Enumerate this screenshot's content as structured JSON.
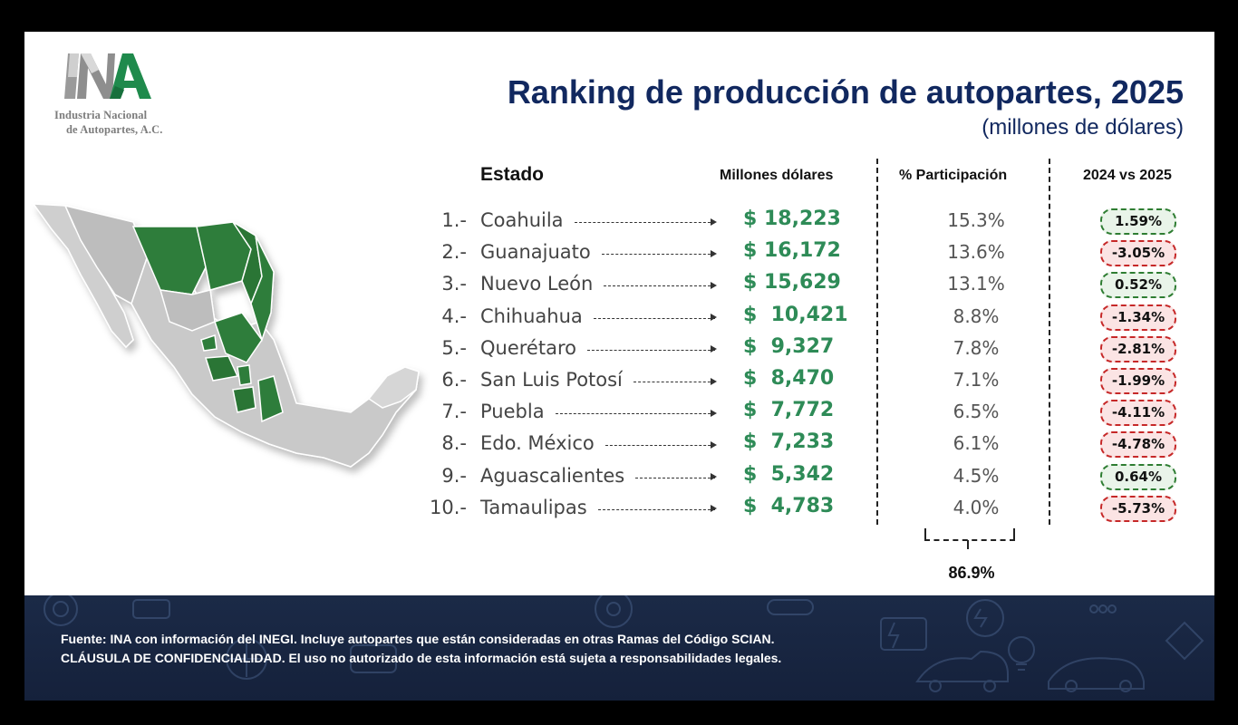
{
  "header": {
    "title": "Ranking de producción de autopartes, 2025",
    "subtitle": "(millones de dólares)"
  },
  "logo": {
    "mark": "INA",
    "line1": "Industria Nacional",
    "line2": "de Autopartes, A.C."
  },
  "table": {
    "col_state": "Estado",
    "col_value": "Millones dólares",
    "col_pct": "% Participación",
    "col_delta": "2024 vs 2025"
  },
  "chart_data": {
    "type": "table",
    "title": "Ranking de producción de autopartes, 2025",
    "subtitle": "(millones de dólares)",
    "columns": [
      "Estado",
      "Millones dólares",
      "% Participación",
      "2024 vs 2025"
    ],
    "rows": [
      {
        "rank": "1.-",
        "state": "Coahuila",
        "value": "$ 18,223",
        "pct": "15.3%",
        "delta": "1.59%",
        "delta_num": 1.59,
        "value_num": 18223
      },
      {
        "rank": "2.-",
        "state": "Guanajuato",
        "value": "$ 16,172",
        "pct": "13.6%",
        "delta": "-3.05%",
        "delta_num": -3.05,
        "value_num": 16172
      },
      {
        "rank": "3.-",
        "state": "Nuevo León",
        "value": "$ 15,629",
        "pct": "13.1%",
        "delta": "0.52%",
        "delta_num": 0.52,
        "value_num": 15629
      },
      {
        "rank": "4.-",
        "state": "Chihuahua",
        "value": "$  10,421",
        "pct": "8.8%",
        "delta": "-1.34%",
        "delta_num": -1.34,
        "value_num": 10421
      },
      {
        "rank": "5.-",
        "state": "Querétaro",
        "value": "$  9,327",
        "pct": "7.8%",
        "delta": "-2.81%",
        "delta_num": -2.81,
        "value_num": 9327
      },
      {
        "rank": "6.-",
        "state": "San Luis Potosí",
        "value": "$  8,470",
        "pct": "7.1%",
        "delta": "-1.99%",
        "delta_num": -1.99,
        "value_num": 8470
      },
      {
        "rank": "7.-",
        "state": "Puebla",
        "value": "$  7,772",
        "pct": "6.5%",
        "delta": "-4.11%",
        "delta_num": -4.11,
        "value_num": 7772
      },
      {
        "rank": "8.-",
        "state": "Edo. México",
        "value": "$  7,233",
        "pct": "6.1%",
        "delta": "-4.78%",
        "delta_num": -4.78,
        "value_num": 7233
      },
      {
        "rank": "9.-",
        "state": "Aguascalientes",
        "value": "$  5,342",
        "pct": "4.5%",
        "delta": "0.64%",
        "delta_num": 0.64,
        "value_num": 5342
      },
      {
        "rank": "10.-",
        "state": "Tamaulipas",
        "value": "$  4,783",
        "pct": "4.0%",
        "delta": "-5.73%",
        "delta_num": -5.73,
        "value_num": 4783
      }
    ],
    "total_pct": "86.9%"
  },
  "footer": {
    "line1": "Fuente: INA con información del INEGI. Incluye autopartes que están consideradas en otras Ramas del Código SCIAN.",
    "line2": "CLÁUSULA DE  CONFIDENCIALIDAD. El uso no autorizado de esta información está sujeta a responsabilidades legales."
  },
  "colors": {
    "title": "#11285f",
    "value_green": "#2e8b57",
    "positive_border": "#2e7d32",
    "negative_border": "#c62828",
    "map_highlight": "#2f7d3a",
    "map_base": "#c9c9c9",
    "footer_bg": "#1b2a47"
  },
  "map": {
    "icon": "mexico-map-icon",
    "highlighted_states": [
      "Coahuila",
      "Guanajuato",
      "Nuevo León",
      "Chihuahua",
      "Querétaro",
      "San Luis Potosí",
      "Puebla",
      "Edo. México",
      "Aguascalientes",
      "Tamaulipas"
    ]
  }
}
